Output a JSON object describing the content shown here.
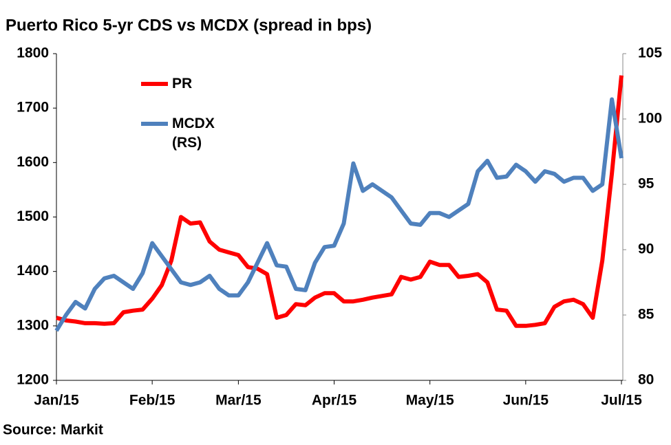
{
  "chart_data": {
    "type": "line",
    "title": "Puerto Rico 5-yr CDS vs MCDX (spread in bps)",
    "source": "Source: Markit",
    "categories": [
      "Jan/15",
      null,
      null,
      null,
      null,
      null,
      null,
      null,
      null,
      null,
      "Feb/15",
      null,
      null,
      null,
      null,
      null,
      null,
      null,
      null,
      "Mar/15",
      null,
      null,
      null,
      null,
      null,
      null,
      null,
      null,
      null,
      "Apr/15",
      null,
      null,
      null,
      null,
      null,
      null,
      null,
      null,
      null,
      "May/15",
      null,
      null,
      null,
      null,
      null,
      null,
      null,
      null,
      null,
      "Jun/15",
      null,
      null,
      null,
      null,
      null,
      null,
      null,
      null,
      null,
      "Jul/15"
    ],
    "ylim": [
      1200,
      1800
    ],
    "yticks": [
      1200,
      1300,
      1400,
      1500,
      1600,
      1700,
      1800
    ],
    "y2lim": [
      80,
      105
    ],
    "y2ticks": [
      80,
      85,
      90,
      95,
      100,
      105
    ],
    "grid": false,
    "legend": "top-left",
    "series": [
      {
        "name": "PR",
        "color": "#ff0000",
        "values": [
          1315,
          1310,
          1308,
          1305,
          1305,
          1304,
          1305,
          1325,
          1328,
          1330,
          1350,
          1375,
          1420,
          1500,
          1488,
          1490,
          1455,
          1440,
          1435,
          1430,
          1408,
          1405,
          1395,
          1315,
          1320,
          1340,
          1338,
          1352,
          1360,
          1360,
          1345,
          1345,
          1348,
          1352,
          1355,
          1358,
          1390,
          1385,
          1390,
          1418,
          1412,
          1412,
          1390,
          1392,
          1395,
          1380,
          1330,
          1328,
          1300,
          1300,
          1302,
          1305,
          1335,
          1345,
          1348,
          1340,
          1315,
          1420,
          1580,
          1760
        ]
      },
      {
        "name": "MCDX (RS)",
        "color": "#4f81bd",
        "axis": "y2",
        "values": [
          83.8,
          85,
          86,
          85.5,
          87,
          87.8,
          88,
          87.5,
          87,
          88.2,
          90.5,
          89.5,
          88.5,
          87.5,
          87.3,
          87.5,
          88,
          87,
          86.5,
          86.5,
          87.5,
          89,
          90.5,
          88.8,
          88.7,
          87,
          86.9,
          89,
          90.2,
          90.3,
          92,
          96.6,
          94.5,
          95,
          94.5,
          94,
          93,
          92,
          91.9,
          92.8,
          92.8,
          92.5,
          93,
          93.5,
          96,
          96.8,
          95.5,
          95.6,
          96.5,
          96,
          95.2,
          96,
          95.8,
          95.2,
          95.5,
          95.5,
          94.5,
          95,
          101.5,
          97
        ]
      }
    ]
  }
}
